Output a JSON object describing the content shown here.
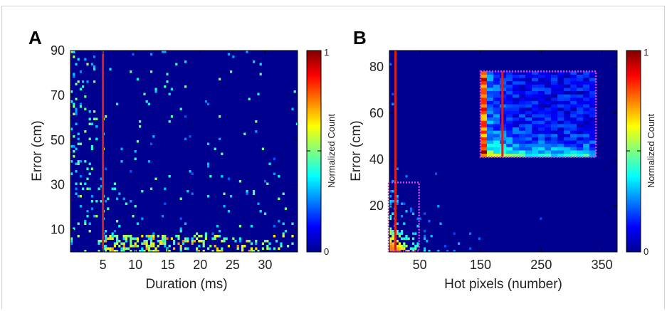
{
  "panels": {
    "a": {
      "letter": "A"
    },
    "b": {
      "letter": "B"
    }
  },
  "chart_data": [
    {
      "type": "heatmap",
      "panel": "A",
      "title": "",
      "xlabel": "Duration (ms)",
      "ylabel": "Error (cm)",
      "xlim": [
        0,
        35
      ],
      "ylim": [
        0,
        90
      ],
      "xticks": [
        5,
        10,
        15,
        20,
        25,
        30
      ],
      "yticks": [
        10,
        30,
        50,
        70,
        90
      ],
      "colorbar": {
        "label": "Normalized Count",
        "min_label": "0",
        "max_label": "1",
        "range": [
          0,
          1
        ],
        "colormap": "jet"
      },
      "threshold_line": {
        "axis": "x",
        "value": 5,
        "color": "#d62020"
      },
      "description_of_density": [
        {
          "x_range": [
            0,
            5
          ],
          "y_range": [
            0,
            90
          ],
          "level": "sparse-light"
        },
        {
          "x_range": [
            5,
            35
          ],
          "y_range": [
            0,
            8
          ],
          "level": "high"
        },
        {
          "x_range": [
            5,
            35
          ],
          "y_range": [
            8,
            30
          ],
          "level": "sparse"
        }
      ]
    },
    {
      "type": "heatmap",
      "panel": "B",
      "title": "",
      "xlabel": "Hot pixels (number)",
      "ylabel": "Error (cm)",
      "xlim": [
        0,
        375
      ],
      "ylim": [
        0,
        87
      ],
      "xticks": [
        50,
        150,
        250,
        350
      ],
      "yticks": [
        20,
        40,
        60,
        80
      ],
      "colorbar": {
        "label": "Normalized Count",
        "min_label": "0",
        "max_label": "1",
        "range": [
          0,
          1
        ],
        "colormap": "jet"
      },
      "threshold_line": {
        "axis": "x",
        "value": 10,
        "color": "#d62020"
      },
      "zoom_region": {
        "x_range": [
          0,
          50
        ],
        "y_range": [
          0,
          30
        ],
        "border_color": "#e040e0"
      },
      "inset": {
        "x_range": [
          150,
          340
        ],
        "y_range": [
          41,
          78
        ],
        "border_color": "#e040e0",
        "threshold_line_color": "#d62020"
      }
    }
  ]
}
